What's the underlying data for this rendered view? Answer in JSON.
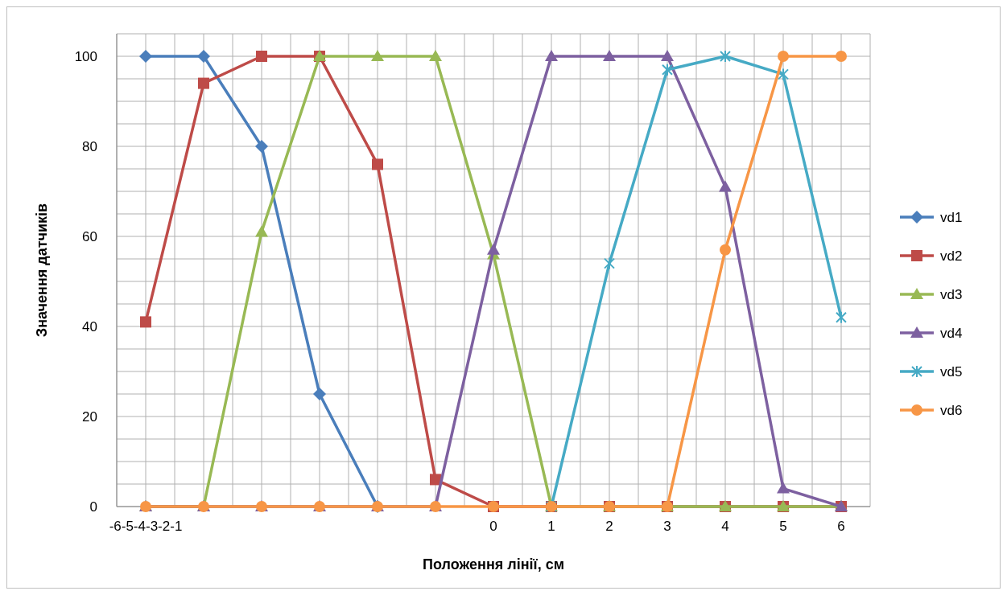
{
  "chart_data": {
    "type": "line",
    "xlabel": "Положення лінії, см",
    "ylabel": "Значення датчиків",
    "categories": [
      "-6-5-4-3-2-1",
      null,
      null,
      null,
      null,
      null,
      "0",
      "1",
      "2",
      "3",
      "4",
      "5",
      "6"
    ],
    "ylim": [
      0,
      105
    ],
    "yticks": [
      0,
      {
        "value": 5,
        "label": null
      },
      {
        "value": 10,
        "label": null
      },
      {
        "value": 15,
        "label": null
      },
      20,
      {
        "value": 25,
        "label": null
      },
      {
        "value": 30,
        "label": null
      },
      {
        "value": 35,
        "label": null
      },
      40,
      {
        "value": 45,
        "label": null
      },
      {
        "value": 50,
        "label": null
      },
      {
        "value": 55,
        "label": null
      },
      60,
      {
        "value": 65,
        "label": null
      },
      {
        "value": 70,
        "label": null
      },
      {
        "value": 75,
        "label": null
      },
      80,
      {
        "value": 85,
        "label": null
      },
      {
        "value": 90,
        "label": null
      },
      {
        "value": 95,
        "label": null
      },
      100,
      {
        "value": 105,
        "label": null
      }
    ],
    "grid": true,
    "legend": "right",
    "series": [
      {
        "name": "vd1",
        "color": "#4a7ebb",
        "marker": "diamond",
        "values": [
          100,
          100,
          80,
          25,
          0,
          null,
          null,
          null,
          null,
          null,
          null,
          null,
          null
        ]
      },
      {
        "name": "vd2",
        "color": "#be4b48",
        "marker": "square",
        "values": [
          41,
          94,
          100,
          100,
          76,
          6,
          0,
          0,
          0,
          0,
          0,
          0,
          0
        ]
      },
      {
        "name": "vd3",
        "color": "#98b954",
        "marker": "triangle",
        "values": [
          0,
          0,
          61,
          100,
          100,
          100,
          56,
          0,
          0,
          0,
          0,
          0,
          0
        ]
      },
      {
        "name": "vd4",
        "color": "#7d60a0",
        "marker": "triangle",
        "values": [
          0,
          0,
          0,
          0,
          0,
          0,
          57,
          100,
          100,
          100,
          71,
          4,
          0
        ]
      },
      {
        "name": "vd5",
        "color": "#46aac5",
        "marker": "cross",
        "values": [
          null,
          null,
          null,
          null,
          null,
          null,
          null,
          0,
          54,
          97,
          100,
          96,
          42
        ]
      },
      {
        "name": "vd6",
        "color": "#f79646",
        "marker": "circle",
        "values": [
          0,
          0,
          0,
          0,
          0,
          0,
          0,
          0,
          0,
          0,
          57,
          100,
          100
        ]
      }
    ]
  }
}
